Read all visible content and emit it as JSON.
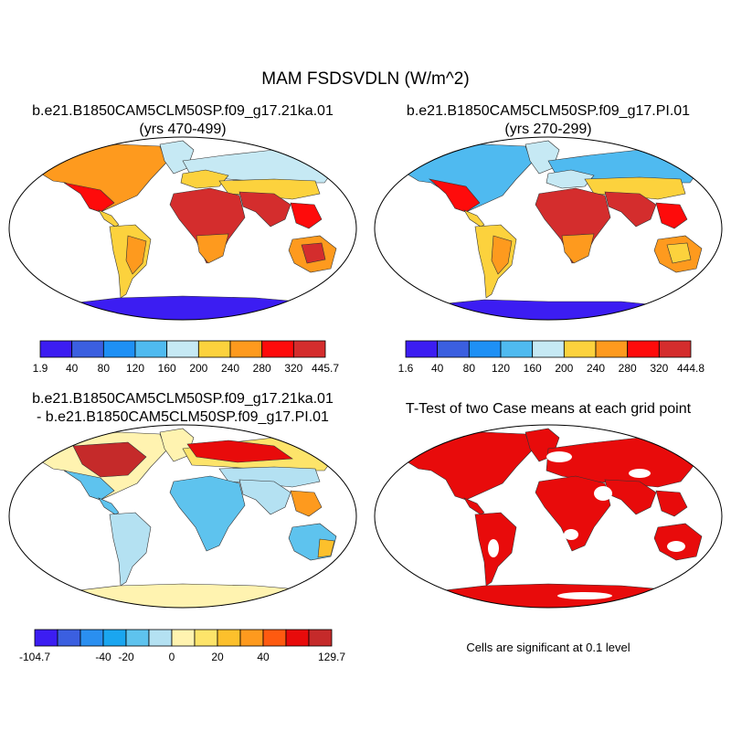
{
  "title": "MAM FSDSVDLN (W/m^2)",
  "panels": [
    {
      "id": "case",
      "title_line1": "b.e21.B1850CAM5CLM50SP.f09_g17.21ka.01",
      "title_line2": "(yrs 470-499)",
      "colorbar": {
        "colors": [
          "#3c1df2",
          "#3b5fe0",
          "#1e90f5",
          "#4fbaf0",
          "#c6e9f4",
          "#fcd23d",
          "#fe9a1e",
          "#fe0b0b",
          "#d42d2d"
        ],
        "labels": [
          "1.9",
          "40",
          "80",
          "120",
          "160",
          "200",
          "240",
          "280",
          "320",
          "445.7"
        ]
      }
    },
    {
      "id": "control",
      "title_line1": "b.e21.B1850CAM5CLM50SP.f09_g17.PI.01",
      "title_line2": "(yrs 270-299)",
      "colorbar": {
        "colors": [
          "#3c1df2",
          "#3b5fe0",
          "#1e90f5",
          "#4fbaf0",
          "#c6e9f4",
          "#fcd23d",
          "#fe9a1e",
          "#fe0b0b",
          "#d42d2d"
        ],
        "labels": [
          "1.6",
          "40",
          "80",
          "120",
          "160",
          "200",
          "240",
          "280",
          "320",
          "444.8"
        ]
      }
    },
    {
      "id": "difference",
      "title_line1": "b.e21.B1850CAM5CLM50SP.f09_g17.21ka.01",
      "title_line2": "- b.e21.B1850CAM5CLM50SP.f09_g17.PI.01",
      "colorbar": {
        "colors": [
          "#3c1df2",
          "#3b5fe0",
          "#2a8ff0",
          "#1aa6f0",
          "#5ec3ee",
          "#b4e1f2",
          "#fff3b0",
          "#fde46a",
          "#fcc02c",
          "#fe9a1e",
          "#fe5a10",
          "#e80b0b",
          "#c52a2a"
        ],
        "labels": [
          "-104.7",
          "",
          "-40",
          "-20",
          "0",
          "20",
          "40",
          "",
          "129.7"
        ]
      }
    },
    {
      "id": "ttest",
      "title_line1": "T-Test of two Case means at each grid point",
      "note": "Cells are significant at 0.1 level"
    }
  ]
}
